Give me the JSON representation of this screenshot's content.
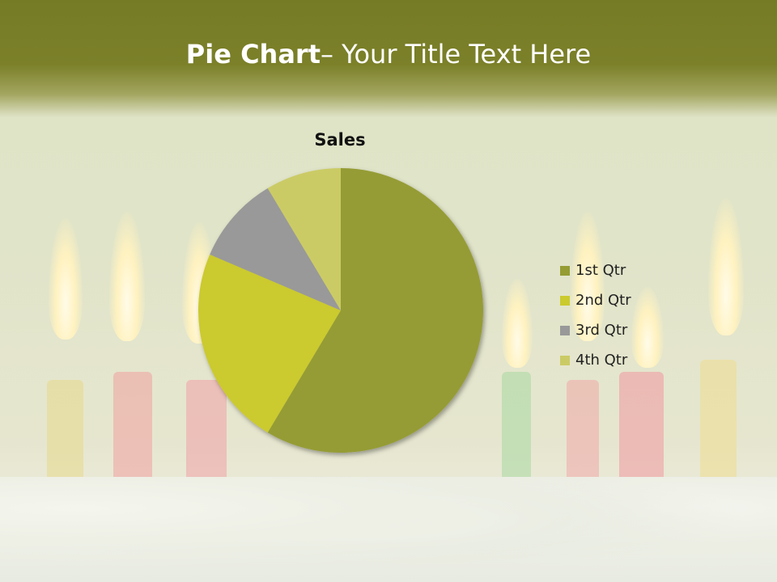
{
  "slide": {
    "title_bold": "Pie Chart",
    "title_rest": "– Your Title Text Here"
  },
  "chart_data": {
    "type": "pie",
    "title": "Sales",
    "categories": [
      "1st Qtr",
      "2nd Qtr",
      "3rd Qtr",
      "4th Qtr"
    ],
    "values": [
      8.2,
      3.2,
      1.4,
      1.2
    ],
    "colors": [
      "#959c34",
      "#cbca2e",
      "#999999",
      "#cbcb66"
    ],
    "legend_position": "right",
    "start_angle": "top, clockwise"
  }
}
